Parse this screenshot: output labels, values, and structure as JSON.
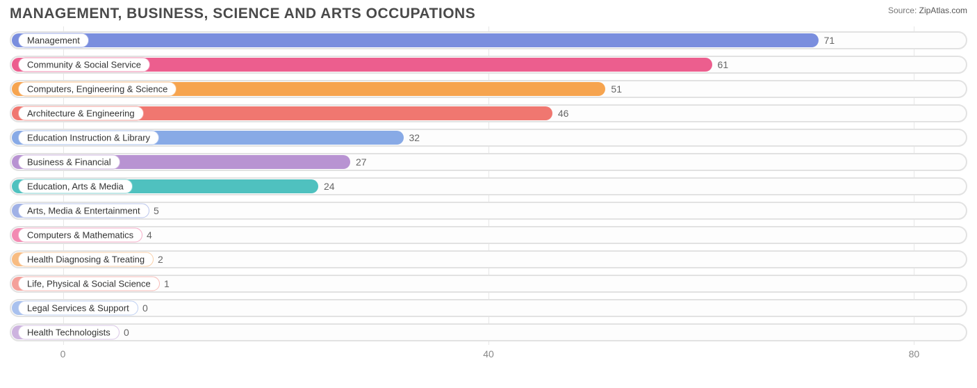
{
  "title": "MANAGEMENT, BUSINESS, SCIENCE AND ARTS OCCUPATIONS",
  "source_label": "Source:",
  "source_value": "ZipAtlas.com",
  "chart": {
    "type": "horizontal-bar",
    "x_min": -5,
    "x_max": 85,
    "ticks": [
      {
        "pos": 0,
        "label": "0"
      },
      {
        "pos": 40,
        "label": "40"
      },
      {
        "pos": 80,
        "label": "80"
      }
    ],
    "track_border_color": "#e2e2e2",
    "gridline_color": "#e6e6e6",
    "rows": [
      {
        "label": "Management",
        "value": 71,
        "bar": "#7a8ede",
        "chip_border": "#9aa9e6"
      },
      {
        "label": "Community & Social Service",
        "value": 61,
        "bar": "#ec5e8e",
        "chip_border": "#f18bb0"
      },
      {
        "label": "Computers, Engineering & Science",
        "value": 51,
        "bar": "#f6a44f",
        "chip_border": "#f8be84"
      },
      {
        "label": "Architecture & Engineering",
        "value": 46,
        "bar": "#f07770",
        "chip_border": "#f39f9a"
      },
      {
        "label": "Education Instruction & Library",
        "value": 32,
        "bar": "#88aae6",
        "chip_border": "#a9c1ee"
      },
      {
        "label": "Business & Financial",
        "value": 27,
        "bar": "#b893d2",
        "chip_border": "#cdb3df"
      },
      {
        "label": "Education, Arts & Media",
        "value": 24,
        "bar": "#4fc1bf",
        "chip_border": "#85d4d2"
      },
      {
        "label": "Arts, Media & Entertainment",
        "value": 5,
        "bar": "#a0b1e6",
        "chip_border": "#b9c5ec"
      },
      {
        "label": "Computers & Mathematics",
        "value": 4,
        "bar": "#f28ab2",
        "chip_border": "#f6acc8"
      },
      {
        "label": "Health Diagnosing & Treating",
        "value": 2,
        "bar": "#f8bc82",
        "chip_border": "#fad0a8"
      },
      {
        "label": "Life, Physical & Social Science",
        "value": 1,
        "bar": "#f4a09a",
        "chip_border": "#f7bcb8"
      },
      {
        "label": "Legal Services & Support",
        "value": 0,
        "bar": "#a9c1ee",
        "chip_border": "#bfd0f2"
      },
      {
        "label": "Health Technologists",
        "value": 0,
        "bar": "#cdb3df",
        "chip_border": "#dac7e7"
      }
    ]
  }
}
